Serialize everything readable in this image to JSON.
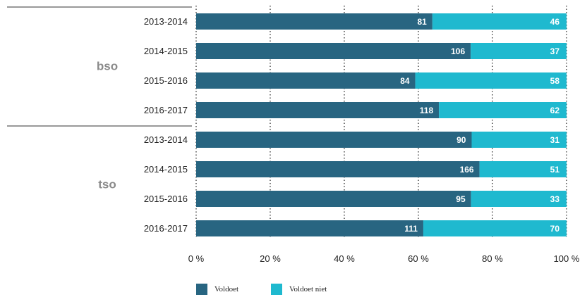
{
  "chart_data": {
    "type": "bar",
    "orientation": "horizontal",
    "stacked": "percent",
    "groups": [
      {
        "name": "bso",
        "categories": [
          "2013-2014",
          "2014-2015",
          "2015-2016",
          "2016-2017"
        ]
      },
      {
        "name": "tso",
        "categories": [
          "2013-2014",
          "2014-2015",
          "2015-2016",
          "2016-2017"
        ]
      }
    ],
    "series": [
      {
        "name": "Voldoet",
        "color": "#286581",
        "values": [
          81,
          106,
          84,
          118,
          90,
          166,
          95,
          111
        ]
      },
      {
        "name": "Voldoet niet",
        "color": "#1fb9cf",
        "values": [
          46,
          37,
          58,
          62,
          31,
          51,
          33,
          70
        ]
      }
    ],
    "x_ticks": [
      "0 %",
      "20 %",
      "40 %",
      "60 %",
      "80 %",
      "100 %"
    ],
    "xlim": [
      0,
      100
    ],
    "grid": "vertical-dotted",
    "legend_position": "bottom"
  }
}
